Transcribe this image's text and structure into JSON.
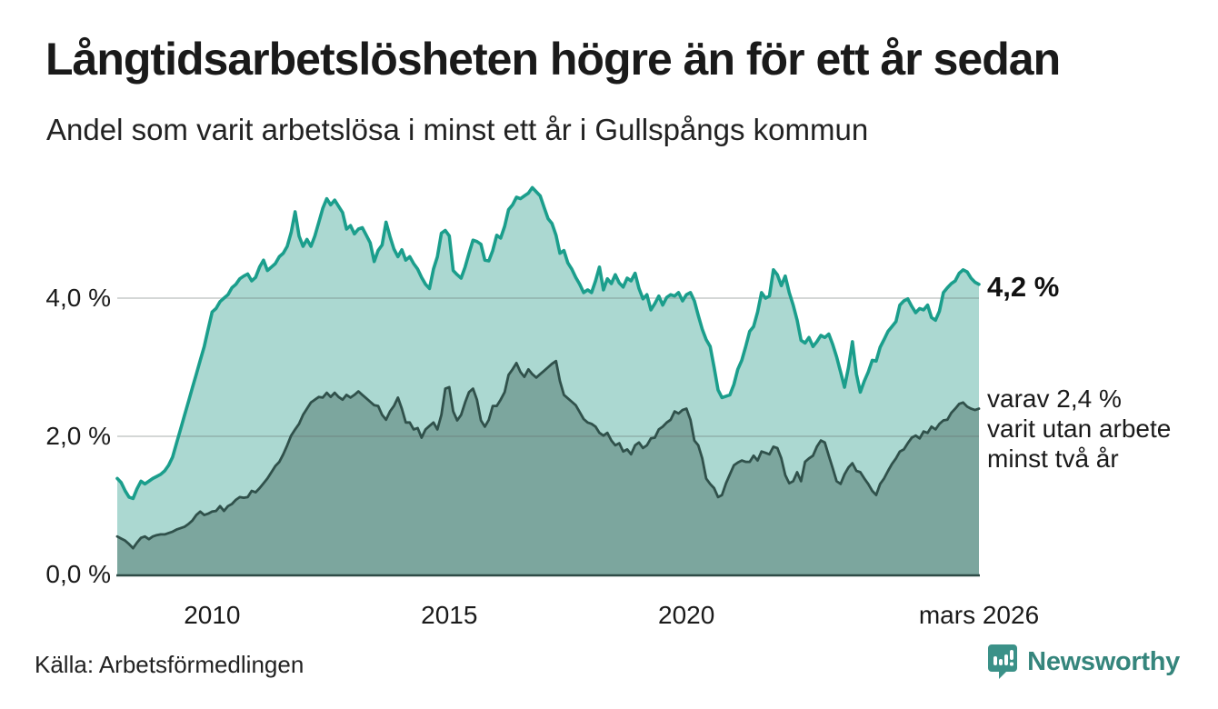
{
  "header": {
    "title": "Långtidsarbetslösheten högre än för ett år sedan",
    "subtitle": "Andel som varit arbetslösa i minst ett år i Gullspångs kommun"
  },
  "annotations": {
    "latest_total": "4,2 %",
    "two_year_line1": "varav 2,4 %",
    "two_year_line2": "varit utan arbete",
    "two_year_line3": "minst två år"
  },
  "footer": {
    "source": "Källa: Arbetsförmedlingen",
    "brand": "Newsworthy"
  },
  "colors": {
    "total_line": "#1b9e8c",
    "total_fill": "#abd8d1",
    "two_year_line": "#30514b",
    "two_year_fill": "#7ca69e",
    "axis": "#2e4b46",
    "grid": "rgba(100,110,108,0.28)",
    "text": "#1a1a1a",
    "brand": "#35857c",
    "brand_icon": "#3b9188"
  },
  "chart_data": {
    "type": "area",
    "title": "Långtidsarbetslösheten högre än för ett år sedan",
    "subtitle": "Andel som varit arbetslösa i minst ett år i Gullspångs kommun",
    "unit": "%",
    "frequency": "monthly",
    "x_start": "2008-01",
    "x_end": "2026-03",
    "ylim": [
      0,
      5.8
    ],
    "grid": true,
    "y_ticks": [
      {
        "label": "0,0 %",
        "value": 0
      },
      {
        "label": "2,0 %",
        "value": 2
      },
      {
        "label": "4,0 %",
        "value": 4
      }
    ],
    "x_ticks": [
      {
        "label": "2010",
        "year": 2010
      },
      {
        "label": "2015",
        "year": 2015
      },
      {
        "label": "2020",
        "year": 2020
      },
      {
        "label": "mars 2026",
        "year": 2026.1667
      }
    ],
    "series": [
      {
        "name": "Arbetslösa minst ett år",
        "latest_value": 4.2,
        "latest_label": "4,2 %",
        "color": "#1b9e8c",
        "fill": "#abd8d1",
        "values": [
          1.39,
          1.33,
          1.21,
          1.12,
          1.1,
          1.24,
          1.35,
          1.31,
          1.35,
          1.39,
          1.42,
          1.45,
          1.5,
          1.58,
          1.7,
          1.9,
          2.1,
          2.3,
          2.5,
          2.7,
          2.9,
          3.1,
          3.3,
          3.55,
          3.8,
          3.85,
          3.95,
          4.0,
          4.05,
          4.15,
          4.2,
          4.28,
          4.32,
          4.35,
          4.25,
          4.3,
          4.45,
          4.55,
          4.4,
          4.45,
          4.5,
          4.6,
          4.65,
          4.75,
          4.95,
          5.25,
          4.9,
          4.75,
          4.85,
          4.75,
          4.9,
          5.1,
          5.3,
          5.44,
          5.35,
          5.42,
          5.33,
          5.24,
          5.0,
          5.05,
          4.93,
          5.0,
          5.02,
          4.91,
          4.8,
          4.53,
          4.69,
          4.77,
          5.1,
          4.89,
          4.71,
          4.6,
          4.7,
          4.55,
          4.6,
          4.5,
          4.42,
          4.3,
          4.2,
          4.14,
          4.42,
          4.6,
          4.94,
          4.98,
          4.9,
          4.4,
          4.34,
          4.29,
          4.45,
          4.65,
          4.84,
          4.82,
          4.78,
          4.55,
          4.54,
          4.69,
          4.91,
          4.87,
          5.04,
          5.28,
          5.35,
          5.46,
          5.44,
          5.48,
          5.52,
          5.6,
          5.54,
          5.48,
          5.31,
          5.15,
          5.08,
          4.91,
          4.65,
          4.69,
          4.51,
          4.42,
          4.3,
          4.2,
          4.08,
          4.12,
          4.08,
          4.25,
          4.45,
          4.12,
          4.28,
          4.21,
          4.34,
          4.22,
          4.16,
          4.29,
          4.25,
          4.36,
          4.14,
          3.99,
          4.05,
          3.83,
          3.92,
          4.03,
          3.9,
          4.01,
          4.05,
          4.03,
          4.08,
          3.96,
          4.05,
          4.08,
          3.96,
          3.75,
          3.55,
          3.4,
          3.3,
          3.0,
          2.67,
          2.56,
          2.58,
          2.6,
          2.75,
          2.97,
          3.1,
          3.3,
          3.52,
          3.59,
          3.8,
          4.08,
          4.0,
          4.03,
          4.41,
          4.34,
          4.18,
          4.32,
          4.08,
          3.9,
          3.68,
          3.39,
          3.35,
          3.43,
          3.3,
          3.37,
          3.46,
          3.43,
          3.48,
          3.33,
          3.15,
          2.93,
          2.71,
          3.0,
          3.37,
          2.9,
          2.64,
          2.8,
          2.93,
          3.1,
          3.09,
          3.29,
          3.4,
          3.52,
          3.59,
          3.66,
          3.9,
          3.96,
          3.99,
          3.88,
          3.79,
          3.85,
          3.83,
          3.9,
          3.72,
          3.68,
          3.81,
          4.08,
          4.15,
          4.21,
          4.25,
          4.36,
          4.41,
          4.38,
          4.29,
          4.23,
          4.2
        ]
      },
      {
        "name": "Arbetslösa minst två år",
        "latest_value": 2.4,
        "latest_label": "2,4 %",
        "color": "#30514b",
        "fill": "#7ca69e",
        "values": [
          0.55,
          0.52,
          0.49,
          0.44,
          0.38,
          0.46,
          0.53,
          0.55,
          0.51,
          0.55,
          0.57,
          0.58,
          0.58,
          0.6,
          0.62,
          0.65,
          0.67,
          0.69,
          0.73,
          0.78,
          0.86,
          0.91,
          0.86,
          0.88,
          0.91,
          0.92,
          0.99,
          0.92,
          0.99,
          1.02,
          1.08,
          1.12,
          1.11,
          1.12,
          1.21,
          1.19,
          1.25,
          1.32,
          1.39,
          1.48,
          1.57,
          1.63,
          1.74,
          1.87,
          2.01,
          2.1,
          2.18,
          2.31,
          2.4,
          2.49,
          2.53,
          2.57,
          2.56,
          2.63,
          2.57,
          2.63,
          2.57,
          2.53,
          2.6,
          2.56,
          2.6,
          2.65,
          2.6,
          2.55,
          2.5,
          2.45,
          2.44,
          2.31,
          2.24,
          2.36,
          2.44,
          2.56,
          2.4,
          2.2,
          2.2,
          2.1,
          2.12,
          1.98,
          2.1,
          2.15,
          2.2,
          2.1,
          2.31,
          2.69,
          2.71,
          2.36,
          2.23,
          2.31,
          2.49,
          2.64,
          2.69,
          2.53,
          2.23,
          2.14,
          2.24,
          2.44,
          2.44,
          2.53,
          2.64,
          2.89,
          2.97,
          3.06,
          2.93,
          2.86,
          2.97,
          2.9,
          2.85,
          2.9,
          2.95,
          3.0,
          3.05,
          3.09,
          2.8,
          2.6,
          2.55,
          2.5,
          2.45,
          2.35,
          2.25,
          2.2,
          2.18,
          2.14,
          2.05,
          2.01,
          2.05,
          1.94,
          1.87,
          1.9,
          1.78,
          1.81,
          1.74,
          1.87,
          1.91,
          1.83,
          1.87,
          1.97,
          1.98,
          2.1,
          2.14,
          2.2,
          2.24,
          2.36,
          2.33,
          2.38,
          2.4,
          2.24,
          1.94,
          1.87,
          1.68,
          1.39,
          1.31,
          1.25,
          1.12,
          1.15,
          1.32,
          1.45,
          1.58,
          1.62,
          1.65,
          1.63,
          1.63,
          1.72,
          1.65,
          1.78,
          1.76,
          1.74,
          1.85,
          1.83,
          1.68,
          1.44,
          1.32,
          1.35,
          1.48,
          1.35,
          1.63,
          1.68,
          1.72,
          1.85,
          1.94,
          1.91,
          1.72,
          1.54,
          1.35,
          1.31,
          1.45,
          1.55,
          1.61,
          1.5,
          1.48,
          1.39,
          1.31,
          1.21,
          1.15,
          1.31,
          1.39,
          1.5,
          1.6,
          1.68,
          1.78,
          1.81,
          1.9,
          1.98,
          2.01,
          1.97,
          2.07,
          2.05,
          2.14,
          2.1,
          2.18,
          2.23,
          2.24,
          2.34,
          2.4,
          2.47,
          2.49,
          2.43,
          2.4,
          2.38,
          2.4
        ]
      }
    ]
  }
}
